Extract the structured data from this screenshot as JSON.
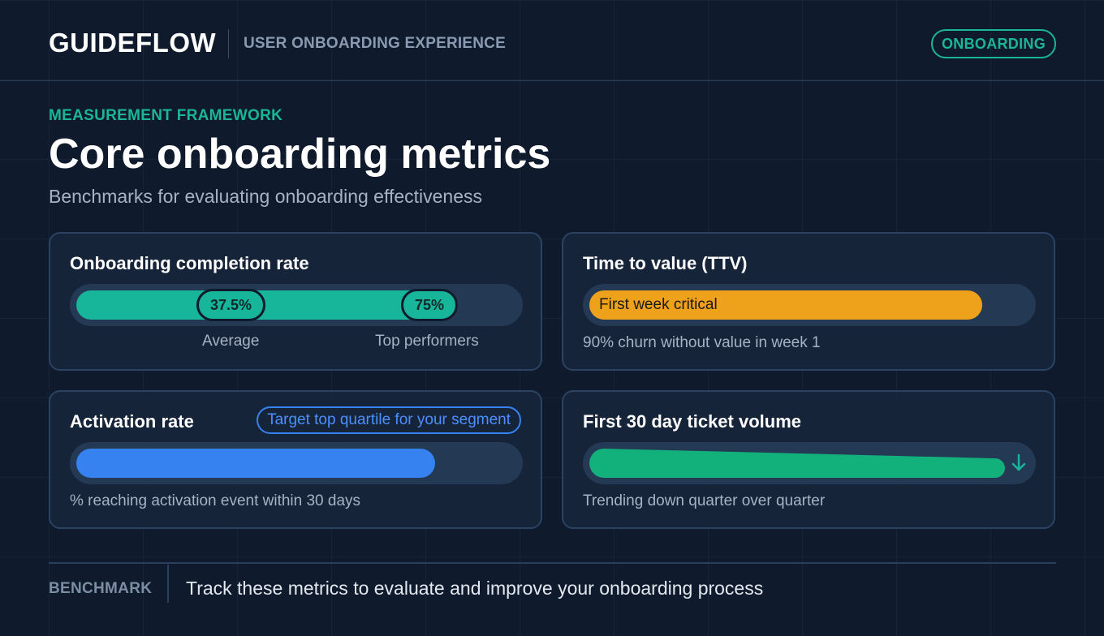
{
  "header": {
    "brand": "GUIDEFLOW",
    "subtitle": "USER ONBOARDING EXPERIENCE",
    "badge": "ONBOARDING"
  },
  "hero": {
    "eyebrow": "MEASUREMENT FRAMEWORK",
    "title": "Core onboarding metrics",
    "subtitle": "Benchmarks for evaluating onboarding effectiveness"
  },
  "cards": {
    "completion": {
      "title": "Onboarding completion rate",
      "average_value": "37.5%",
      "average_label": "Average",
      "top_value": "75%",
      "top_label": "Top performers",
      "accent": "#17b59a"
    },
    "ttv": {
      "title": "Time to value (TTV)",
      "bar_label": "First week critical",
      "caption": "90% churn without value in week 1",
      "accent": "#eea11b"
    },
    "activation": {
      "title": "Activation rate",
      "badge": "Target top quartile for your segment",
      "caption": "% reaching activation event within 30 days",
      "accent": "#3582f0"
    },
    "tickets": {
      "title": "First 30 day ticket volume",
      "caption": "Trending down quarter over quarter",
      "trend_icon": "arrow-down-icon",
      "accent": "#12b07a"
    }
  },
  "footer": {
    "label": "BENCHMARK",
    "text": "Track these metrics to evaluate and improve your onboarding process"
  }
}
